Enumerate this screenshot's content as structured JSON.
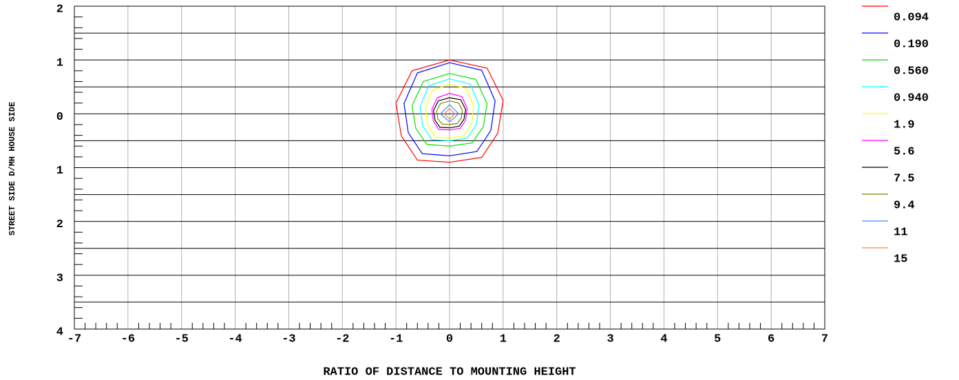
{
  "chart_data": {
    "type": "contour",
    "xlabel": "RATIO OF DISTANCE TO MOUNTING HEIGHT",
    "ylabel": "STREET SIDE  D/MH  HOUSE SIDE",
    "xlim": [
      -7,
      7
    ],
    "ylim": [
      -4,
      2
    ],
    "xticks": [
      -7,
      -6,
      -5,
      -4,
      -3,
      -2,
      -1,
      0,
      1,
      2,
      3,
      4,
      5,
      6,
      7
    ],
    "yticks": [
      2,
      1,
      0,
      {
        "value": -1,
        "label": "1"
      },
      {
        "value": -2,
        "label": "2"
      },
      {
        "value": -3,
        "label": "3"
      },
      {
        "value": -4,
        "label": "4"
      }
    ],
    "ygrid": [
      1.5,
      1,
      0.5,
      0,
      -0.5,
      -1,
      -1.5,
      -2,
      -2.5,
      -3,
      -3.5
    ],
    "xminorticks": [
      -6.8,
      -6.6,
      -6.4,
      -6.2,
      -5.8,
      -5.6,
      -5.4,
      -5.2,
      -4.8,
      -4.6,
      -4.4,
      -4.2,
      -3.8,
      -3.6,
      -3.4,
      -3.2,
      -2.8,
      -2.6,
      -2.4,
      -2.2,
      -1.8,
      -1.6,
      -1.4,
      -1.2,
      -0.8,
      -0.6,
      -0.4,
      -0.2,
      0.2,
      0.4,
      0.6,
      0.8,
      1.2,
      1.4,
      1.6,
      1.8,
      2.2,
      2.4,
      2.6,
      2.8,
      3.2,
      3.4,
      3.6,
      3.8,
      4.2,
      4.4,
      4.6,
      4.8,
      5.2,
      5.4,
      5.6,
      5.8,
      6.2,
      6.4,
      6.6,
      6.8
    ],
    "yminorticks": [
      1.8,
      1.6,
      1.4,
      1.2,
      0.8,
      0.6,
      0.4,
      0.2,
      -0.2,
      -0.4,
      -0.6,
      -0.8,
      -1.2,
      -1.4,
      -1.6,
      -1.8,
      -2.2,
      -2.4,
      -2.6,
      -2.8,
      -3.2,
      -3.4,
      -3.6,
      -3.8
    ],
    "series": [
      {
        "name": "0.094",
        "color": "#ff0000",
        "x": [
          0,
          0.7,
          1,
          0.9,
          0.6,
          0,
          -0.6,
          -0.9,
          -1,
          -0.7
        ],
        "y": [
          1,
          0.85,
          0.25,
          -0.36,
          -0.81,
          -0.9,
          -0.86,
          -0.41,
          0.2,
          0.8
        ]
      },
      {
        "name": "0.190",
        "color": "#0000ff",
        "x": [
          0,
          0.6,
          0.85,
          0.77,
          0.51,
          0,
          -0.51,
          -0.77,
          -0.85,
          -0.6
        ],
        "y": [
          0.95,
          0.81,
          0.24,
          -0.31,
          -0.7,
          -0.78,
          -0.74,
          -0.35,
          0.19,
          0.76
        ]
      },
      {
        "name": "0.560",
        "color": "#00e000",
        "x": [
          0,
          0.49,
          0.7,
          0.63,
          0.42,
          0,
          -0.42,
          -0.63,
          -0.7,
          -0.49
        ],
        "y": [
          0.75,
          0.64,
          0.19,
          -0.24,
          -0.54,
          -0.6,
          -0.57,
          -0.27,
          0.15,
          0.6
        ]
      },
      {
        "name": "0.940",
        "color": "#00ffff",
        "x": [
          0,
          0.39,
          0.55,
          0.5,
          0.33,
          0,
          -0.33,
          -0.5,
          -0.55,
          -0.39
        ],
        "y": [
          0.65,
          0.55,
          0.16,
          -0.2,
          -0.45,
          -0.5,
          -0.48,
          -0.23,
          0.13,
          0.52
        ]
      },
      {
        "name": "1.9",
        "color": "#ffff00",
        "x": [
          0,
          0.32,
          0.45,
          0.41,
          0.27,
          0,
          -0.27,
          -0.41,
          -0.45,
          -0.32
        ],
        "y": [
          0.55,
          0.47,
          0.14,
          -0.18,
          -0.41,
          -0.45,
          -0.43,
          -0.2,
          0.11,
          0.44
        ]
      },
      {
        "name": "5.6",
        "color": "#ff00ff",
        "x": [
          0,
          0.23,
          0.33,
          0.3,
          0.2,
          0,
          -0.2,
          -0.3,
          -0.33,
          -0.23
        ],
        "y": [
          0.38,
          0.32,
          0.1,
          -0.12,
          -0.27,
          -0.3,
          -0.29,
          -0.14,
          0.08,
          0.3
        ]
      },
      {
        "name": "7.5",
        "color": "#000000",
        "x": [
          0,
          0.21,
          0.3,
          0.27,
          0.18,
          0,
          -0.18,
          -0.27,
          -0.3,
          -0.21
        ],
        "y": [
          0.3,
          0.26,
          0.08,
          -0.1,
          -0.23,
          -0.26,
          -0.25,
          -0.12,
          0.06,
          0.24
        ]
      },
      {
        "name": "9.4",
        "color": "#808000",
        "x": [
          0,
          0.17,
          0.24,
          0.22,
          0.14,
          0,
          -0.14,
          -0.22,
          -0.24,
          -0.17
        ],
        "y": [
          0.24,
          0.2,
          0.06,
          -0.08,
          -0.18,
          -0.2,
          -0.19,
          -0.09,
          0.05,
          0.19
        ]
      },
      {
        "name": "11",
        "color": "#3090ff",
        "x": [
          0,
          0.17,
          0,
          -0.17
        ],
        "y": [
          0.17,
          0,
          -0.15,
          0
        ]
      },
      {
        "name": "15",
        "color": "#ff8040",
        "x": [
          0,
          0.1,
          0,
          -0.1
        ],
        "y": [
          0.1,
          0,
          -0.1,
          0
        ]
      }
    ]
  }
}
